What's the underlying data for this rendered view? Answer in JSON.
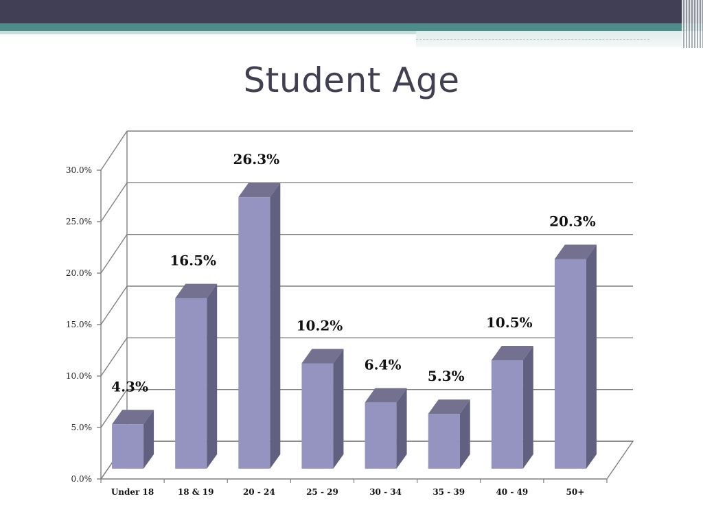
{
  "title": "Student Age",
  "colors": {
    "bar_front": "#9593bf",
    "bar_side": "#626080",
    "bar_top": "#73718f",
    "grid": "#7f7f7f",
    "header_dark": "#403f55",
    "header_teal": "#4e8c8a"
  },
  "chart_data": {
    "type": "bar",
    "style": "3d-column",
    "categories": [
      "Under 18",
      "18 & 19",
      "20 - 24",
      "25 - 29",
      "30 - 34",
      "35 - 39",
      "40 - 49",
      "50+"
    ],
    "values": [
      4.3,
      16.5,
      26.3,
      10.2,
      6.4,
      5.3,
      10.5,
      20.3
    ],
    "data_labels": [
      "4.3%",
      "16.5%",
      "26.3%",
      "10.2%",
      "6.4%",
      "5.3%",
      "10.5%",
      "20.3%"
    ],
    "y_ticks": [
      "0.0%",
      "5.0%",
      "10.0%",
      "15.0%",
      "20.0%",
      "25.0%",
      "30.0%"
    ],
    "ylim": [
      0,
      30
    ],
    "grid": true,
    "legend": "none"
  }
}
